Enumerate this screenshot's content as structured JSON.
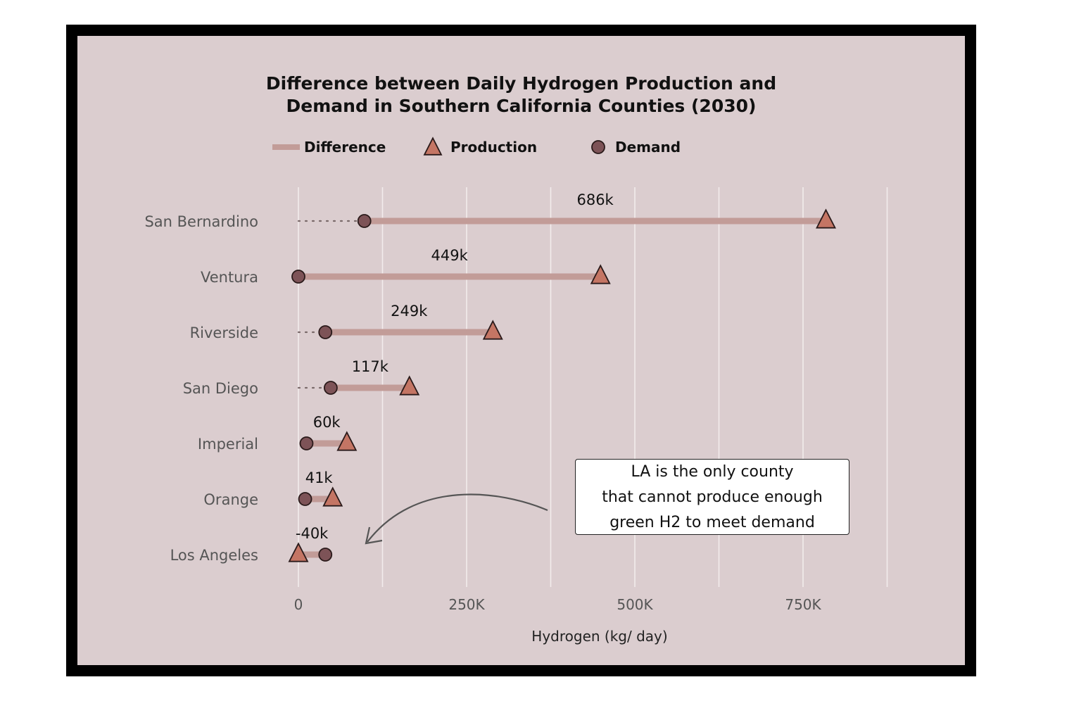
{
  "chart_data": {
    "type": "dumbbell",
    "title_lines": [
      "Difference between Daily Hydrogen Production and",
      "Demand in Southern California Counties (2030)"
    ],
    "xlabel": "Hydrogen (kg/ day)",
    "xlim": [
      0,
      875000
    ],
    "xticks": [
      0,
      250000,
      500000,
      750000
    ],
    "xtick_labels": [
      "0",
      "250K",
      "500K",
      "750K"
    ],
    "grid": true,
    "legend": {
      "placement": "top",
      "items": [
        {
          "label": "Difference",
          "symbol": "line"
        },
        {
          "label": "Production",
          "symbol": "triangle"
        },
        {
          "label": "Demand",
          "symbol": "circle"
        }
      ]
    },
    "categories": [
      "San Bernardino",
      "Ventura",
      "Riverside",
      "San Diego",
      "Imperial",
      "Orange",
      "Los Angeles"
    ],
    "series": [
      {
        "name": "Production",
        "values": [
          784000,
          449000,
          289000,
          165000,
          72000,
          51000,
          0
        ]
      },
      {
        "name": "Demand",
        "values": [
          98000,
          0,
          40000,
          48000,
          12000,
          10000,
          40000
        ]
      }
    ],
    "difference_labels": [
      "686k",
      "449k",
      "249k",
      "117k",
      "60k",
      "41k",
      "-40k"
    ],
    "colors": {
      "background": "#dbcdcf",
      "frame": "#000000",
      "difference_bar": "#c29c98",
      "production": "#c47564",
      "demand": "#7d5357",
      "grid": "#f2ecec"
    }
  },
  "annotation": {
    "lines": [
      "LA is the only county",
      "that cannot produce enough",
      "green H2 to meet demand"
    ],
    "target_category": "Los Angeles"
  }
}
